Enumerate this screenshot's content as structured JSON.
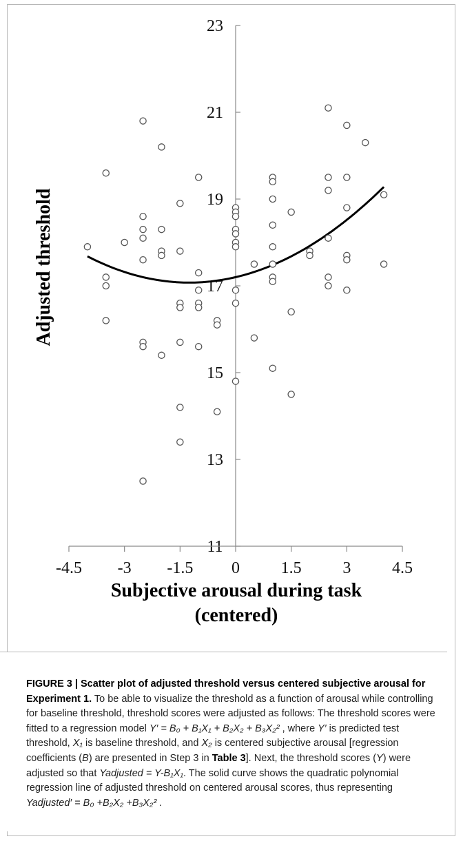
{
  "chart_data": {
    "type": "scatter",
    "xlabel": "Subjective arousal during task",
    "xlabel_line2": "(centered)",
    "ylabel": "Adjusted threshold",
    "xlim": [
      -4.5,
      4.5
    ],
    "ylim": [
      11,
      23
    ],
    "x_ticks": [
      -4.5,
      -3,
      -1.5,
      0,
      1.5,
      3,
      4.5
    ],
    "x_tick_labels": [
      "-4.5",
      "-3",
      "-1.5",
      "0",
      "1.5",
      "3",
      "4.5"
    ],
    "y_ticks": [
      11,
      13,
      15,
      17,
      19,
      21,
      23
    ],
    "y_tick_labels": [
      "11",
      "13",
      "15",
      "17",
      "19",
      "21",
      "23"
    ],
    "grid": false,
    "legend": "none",
    "marker_color": "#555555",
    "line_color": "#000000",
    "points": [
      [
        -4,
        17.9
      ],
      [
        -3.5,
        19.6
      ],
      [
        -3.5,
        17.2
      ],
      [
        -3.5,
        17
      ],
      [
        -3.5,
        16.2
      ],
      [
        -3,
        18
      ],
      [
        -2.5,
        20.8
      ],
      [
        -2.5,
        18.6
      ],
      [
        -2.5,
        18.3
      ],
      [
        -2.5,
        18.1
      ],
      [
        -2.5,
        17.6
      ],
      [
        -2.5,
        15.7
      ],
      [
        -2.5,
        15.6
      ],
      [
        -2.5,
        12.5
      ],
      [
        -2,
        20.2
      ],
      [
        -2,
        18.3
      ],
      [
        -2,
        17.8
      ],
      [
        -2,
        17.7
      ],
      [
        -2,
        15.4
      ],
      [
        -1.5,
        18.9
      ],
      [
        -1.5,
        17.8
      ],
      [
        -1.5,
        16.6
      ],
      [
        -1.5,
        16.5
      ],
      [
        -1.5,
        15.7
      ],
      [
        -1.5,
        14.2
      ],
      [
        -1.5,
        13.4
      ],
      [
        -1,
        19.5
      ],
      [
        -1,
        17.3
      ],
      [
        -1,
        16.9
      ],
      [
        -1,
        16.6
      ],
      [
        -1,
        16.5
      ],
      [
        -1,
        15.6
      ],
      [
        -0.5,
        16.2
      ],
      [
        -0.5,
        16.1
      ],
      [
        -0.5,
        14.1
      ],
      [
        0,
        18.8
      ],
      [
        0,
        18.7
      ],
      [
        0,
        18.6
      ],
      [
        0,
        18.3
      ],
      [
        0,
        18.2
      ],
      [
        0,
        18
      ],
      [
        0,
        17.9
      ],
      [
        0,
        16.9
      ],
      [
        0,
        16.6
      ],
      [
        0,
        14.8
      ],
      [
        0.5,
        17.5
      ],
      [
        0.5,
        15.8
      ],
      [
        1,
        19.5
      ],
      [
        1,
        19.4
      ],
      [
        1,
        19
      ],
      [
        1,
        18.4
      ],
      [
        1,
        17.9
      ],
      [
        1,
        17.5
      ],
      [
        1,
        17.2
      ],
      [
        1,
        17.1
      ],
      [
        1,
        15.1
      ],
      [
        1.5,
        18.7
      ],
      [
        1.5,
        16.4
      ],
      [
        1.5,
        14.5
      ],
      [
        2,
        17.8
      ],
      [
        2,
        17.7
      ],
      [
        2.5,
        21.1
      ],
      [
        2.5,
        19.5
      ],
      [
        2.5,
        19.2
      ],
      [
        2.5,
        18.1
      ],
      [
        2.5,
        17.2
      ],
      [
        2.5,
        17
      ],
      [
        3,
        20.7
      ],
      [
        3,
        19.5
      ],
      [
        3,
        18.8
      ],
      [
        3,
        17.7
      ],
      [
        3,
        17.6
      ],
      [
        3,
        16.9
      ],
      [
        3.5,
        20.3
      ],
      [
        4,
        19.1
      ],
      [
        4,
        17.5
      ]
    ],
    "fit_line": {
      "type": "quadratic",
      "x_range": [
        -4,
        4
      ],
      "coefficients": {
        "b0": 17.2,
        "b1": 0.2,
        "b2": 0.08
      }
    }
  },
  "caption": {
    "figure_label": "FIGURE 3 | Scatter plot of adjusted threshold versus centered subjective arousal for Experiment 1.",
    "t1": " To be able to visualize the threshold as a function of arousal while controlling for baseline threshold, threshold scores were adjusted as follows: The threshold scores were fitted to a regression model ",
    "model_eq": "Y′ = B₀ + B₁X₁ + B₂X₂ + B₃X₂²",
    "t2": " , where ",
    "y_prime": "Y′",
    "t3": " is predicted test threshold, ",
    "x1": "X₁",
    "t4": " is baseline threshold, and ",
    "x2": "X₂",
    "t5": " is centered subjective arousal [regression coefficients (",
    "b": "B",
    "t6": ") are presented in Step 3 in ",
    "table_ref": "Table 3",
    "t7": "]. Next, the threshold scores (",
    "y": "Y",
    "t8": ") were adjusted so that ",
    "adj_eq": "Yadjusted = Y-B₁X₁",
    "t9": ". The solid curve shows the quadratic polynomial regression line of adjusted threshold on centered arousal scores, thus representing ",
    "final_eq": "Yadjusted′ = B₀ +B₂X₂ +B₃X₂² ."
  }
}
